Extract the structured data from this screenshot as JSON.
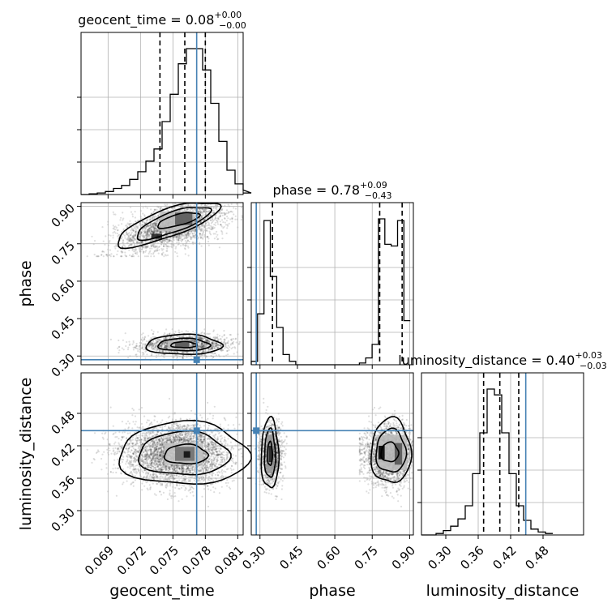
{
  "chart_data": {
    "type": "corner",
    "parameters": [
      "geocent_time",
      "phase",
      "luminosity_distance"
    ],
    "axis_labels": {
      "geocent_time": "geocent_time",
      "phase": "phase",
      "luminosity_distance": "luminosity_distance"
    },
    "ranges": {
      "geocent_time": [
        0.0665,
        0.0815
      ],
      "phase": [
        0.265,
        0.915
      ],
      "luminosity_distance": [
        0.255,
        0.555
      ]
    },
    "ticks": {
      "geocent_time": [
        "0.069",
        "0.072",
        "0.075",
        "0.078",
        "0.081"
      ],
      "phase": [
        "0.30",
        "0.45",
        "0.60",
        "0.75",
        "0.90"
      ],
      "luminosity_distance": [
        "0.30",
        "0.36",
        "0.42",
        "0.48"
      ]
    },
    "truths": {
      "geocent_time": 0.0772,
      "phase": 0.285,
      "luminosity_distance": 0.448
    },
    "titles": {
      "geocent_time": {
        "label": "geocent_time = 0.08",
        "plus": "+0.00",
        "minus": "−0.00"
      },
      "phase": {
        "label": "phase = 0.78",
        "plus": "+0.09",
        "minus": "−0.43"
      },
      "luminosity_distance": {
        "label": "luminosity_distance = 0.40",
        "plus": "+0.03",
        "minus": "−0.03"
      }
    },
    "quantiles": {
      "geocent_time": [
        0.0738,
        0.0761,
        0.078
      ],
      "phase": [
        0.35,
        0.78,
        0.87
      ],
      "luminosity_distance": [
        0.37,
        0.4,
        0.435
      ]
    },
    "histograms": {
      "geocent_time": {
        "edges_start": 0.0665,
        "bin_width": 0.00075,
        "counts": [
          0,
          0.5,
          1,
          2,
          4,
          6,
          10,
          15,
          22,
          30,
          48,
          66,
          86,
          96,
          96,
          82,
          60,
          35,
          16,
          7,
          3,
          1
        ]
      },
      "phase": {
        "edges_start": 0.265,
        "bin_width": 0.0255,
        "counts": [
          2,
          30,
          85,
          52,
          22,
          6,
          2,
          0,
          0,
          0,
          0,
          0,
          0,
          0,
          0,
          0,
          0,
          1,
          4,
          12,
          86,
          71,
          70,
          85,
          26
        ]
      },
      "luminosity_distance": {
        "edges_start": 0.255,
        "bin_width": 0.0135,
        "counts": [
          0,
          0,
          1,
          3,
          6,
          11,
          20,
          42,
          70,
          100,
          96,
          70,
          42,
          20,
          10,
          4,
          2,
          1
        ]
      }
    },
    "grid": true
  }
}
